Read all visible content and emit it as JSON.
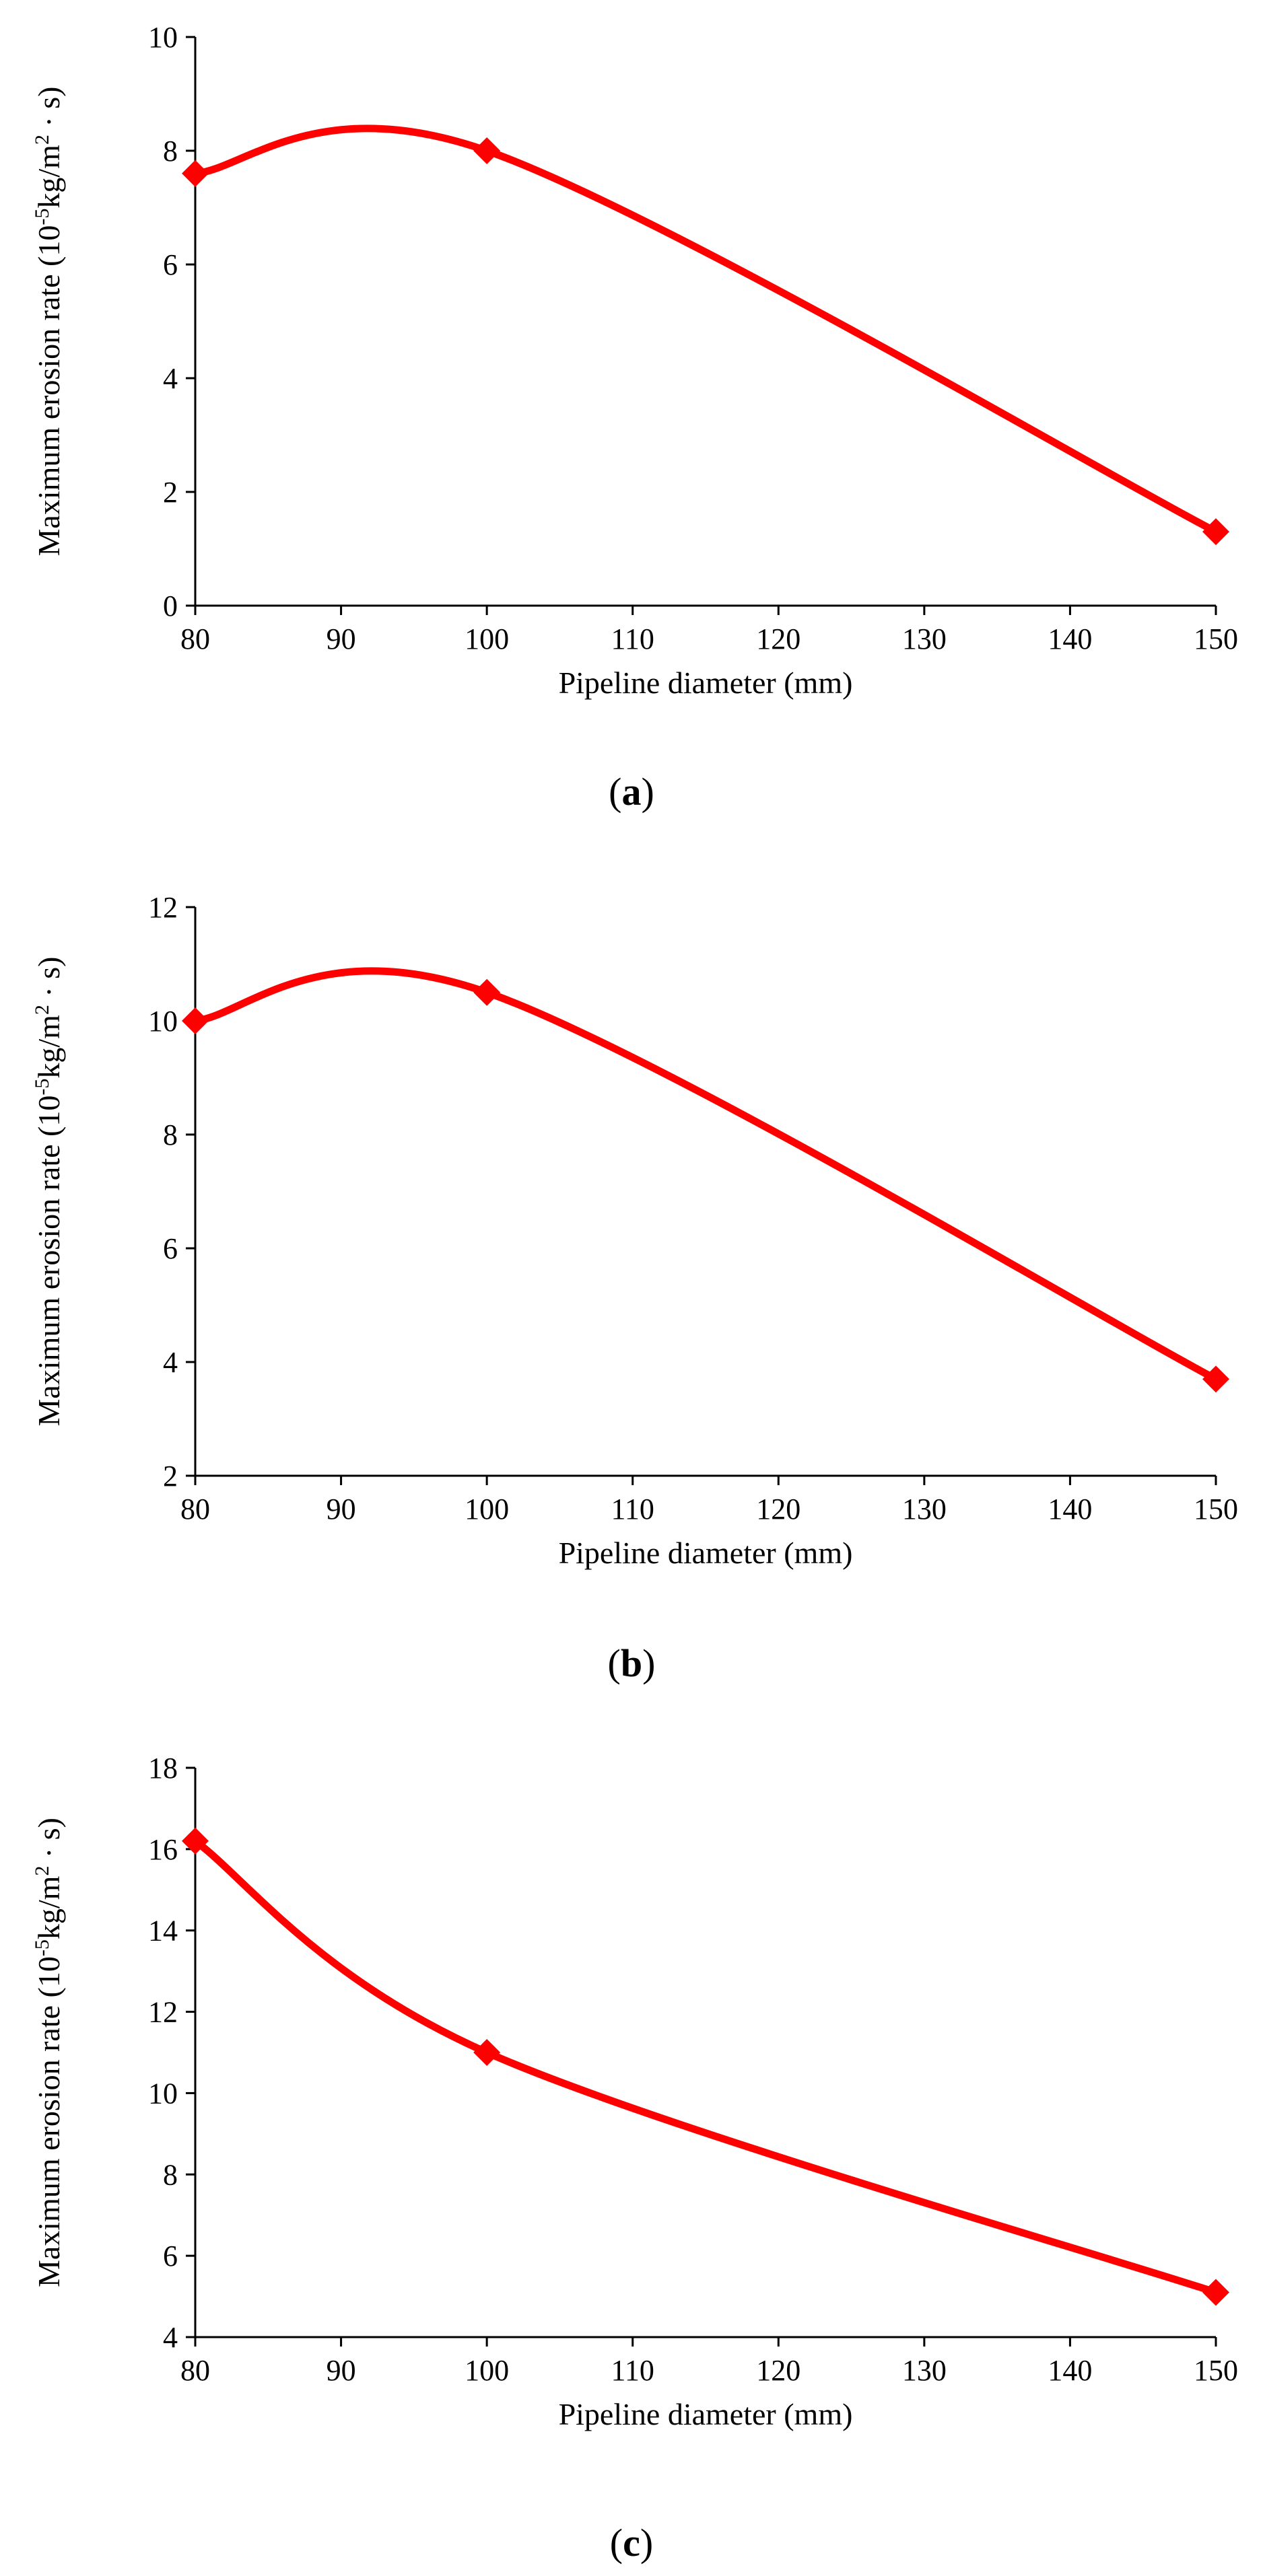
{
  "chart_data": [
    {
      "type": "line",
      "caption": "a",
      "x": [
        80,
        100,
        150
      ],
      "series": [
        {
          "name": "Maximum erosion rate",
          "values": [
            7.6,
            8.0,
            1.3
          ]
        }
      ],
      "xlabel": "Pipeline diameter (mm)",
      "ylabel_main": "Maximum erosion rate (10",
      "ylabel_sup": "-5",
      "ylabel_tail": "kg/m",
      "ylabel_sup2": "2",
      "ylabel_end": " · s)",
      "xlim": [
        80,
        150
      ],
      "ylim": [
        0,
        10
      ],
      "xticks": [
        80,
        90,
        100,
        110,
        120,
        130,
        140,
        150
      ],
      "yticks": [
        0,
        2,
        4,
        6,
        8,
        10
      ],
      "line_color": "#ff0000",
      "grid": false
    },
    {
      "type": "line",
      "caption": "b",
      "x": [
        80,
        100,
        150
      ],
      "series": [
        {
          "name": "Maximum erosion rate",
          "values": [
            10.0,
            10.5,
            3.7
          ]
        }
      ],
      "xlabel": "Pipeline diameter (mm)",
      "ylabel_main": "Maximum erosion rate (10",
      "ylabel_sup": "-5",
      "ylabel_tail": "kg/m",
      "ylabel_sup2": "2",
      "ylabel_end": " · s)",
      "xlim": [
        80,
        150
      ],
      "ylim": [
        2,
        12
      ],
      "xticks": [
        80,
        90,
        100,
        110,
        120,
        130,
        140,
        150
      ],
      "yticks": [
        2,
        4,
        6,
        8,
        10,
        12
      ],
      "line_color": "#ff0000",
      "grid": false
    },
    {
      "type": "line",
      "caption": "c",
      "x": [
        80,
        100,
        150
      ],
      "series": [
        {
          "name": "Maximum erosion rate",
          "values": [
            16.2,
            11.0,
            5.1
          ]
        }
      ],
      "xlabel": "Pipeline diameter (mm)",
      "ylabel_main": "Maximum erosion rate (10",
      "ylabel_sup": "-5",
      "ylabel_tail": "kg/m",
      "ylabel_sup2": "2",
      "ylabel_end": " · s)",
      "xlim": [
        80,
        150
      ],
      "ylim": [
        4,
        18
      ],
      "xticks": [
        80,
        90,
        100,
        110,
        120,
        130,
        140,
        150
      ],
      "yticks": [
        4,
        6,
        8,
        10,
        12,
        14,
        16,
        18
      ],
      "line_color": "#ff0000",
      "grid": false
    }
  ]
}
